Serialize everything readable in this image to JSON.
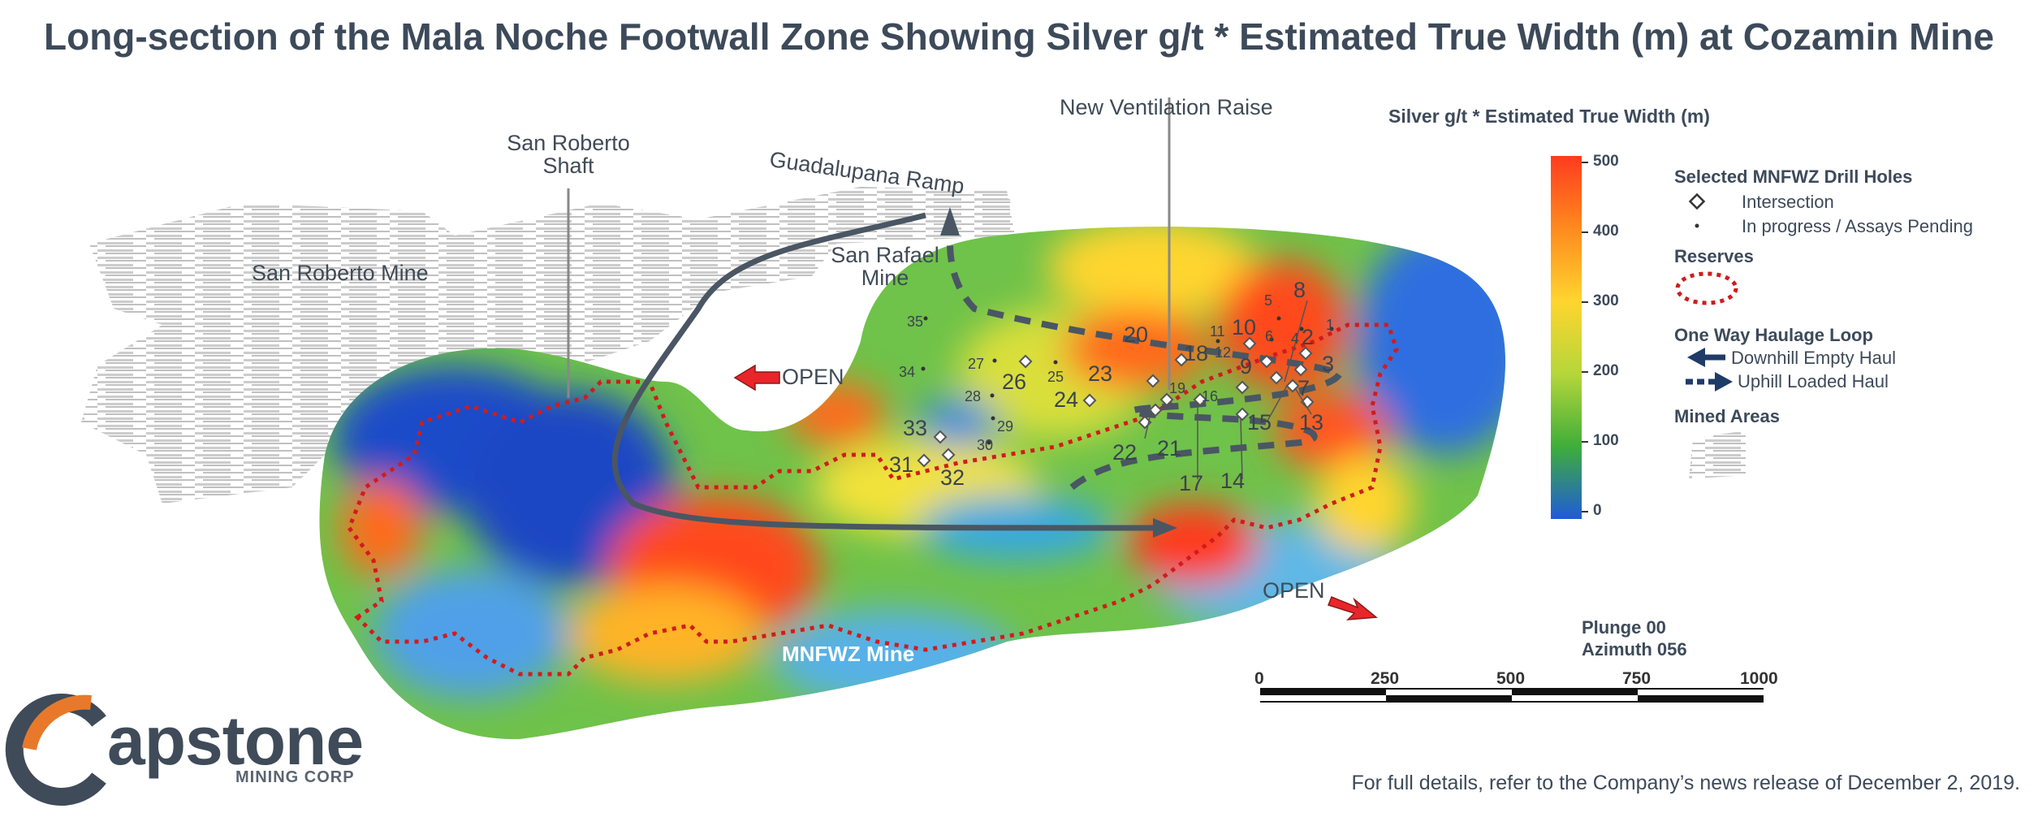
{
  "title": "Long-section of the Mala Noche Footwall Zone Showing Silver g/t * Estimated True Width (m) at Cozamin Mine",
  "map_labels": {
    "san_roberto_mine": "San Roberto Mine",
    "san_roberto_shaft": "San Roberto\nShaft",
    "guadalupana_ramp": "Guadalupana Ramp",
    "san_rafael_mine": "San Rafael\nMine",
    "new_ventilation_raise": "New Ventilation Raise",
    "open_1": "OPEN",
    "open_2": "OPEN",
    "mnfwz_mine": "MNFWZ Mine"
  },
  "drill_holes": [
    "1",
    "2",
    "3",
    "4",
    "5",
    "6",
    "7",
    "8",
    "9",
    "10",
    "11",
    "12",
    "13",
    "14",
    "15",
    "16",
    "17",
    "18",
    "19",
    "20",
    "21",
    "22",
    "23",
    "24",
    "25",
    "26",
    "27",
    "28",
    "29",
    "30",
    "31",
    "32",
    "33",
    "34",
    "35"
  ],
  "colorbar": {
    "title": "Silver g/t * Estimated True Width (m)",
    "ticks": [
      "500",
      "400",
      "300",
      "200",
      "100",
      "0"
    ],
    "colors": [
      "#ff3b1f",
      "#ff8a1e",
      "#ffd52e",
      "#b6d63a",
      "#3fae3a",
      "#1f5bd8"
    ]
  },
  "legend": {
    "drill_holes_heading": "Selected MNFWZ Drill Holes",
    "intersection": "Intersection",
    "in_progress": "In progress / Assays Pending",
    "reserves_heading": "Reserves",
    "haulage_heading": "One Way Haulage Loop",
    "downhill": "Downhill Empty Haul",
    "uphill": "Uphill Loaded Haul",
    "mined_heading": "Mined Areas"
  },
  "orientation": {
    "plunge": "Plunge 00",
    "azimuth": "Azimuth 056"
  },
  "scale_bar": [
    "0",
    "250",
    "500",
    "750",
    "1000"
  ],
  "footer": "For full details, refer to the Company’s news release of December 2, 2019.",
  "logo": {
    "word": "apstone",
    "sub": "MINING CORP"
  }
}
